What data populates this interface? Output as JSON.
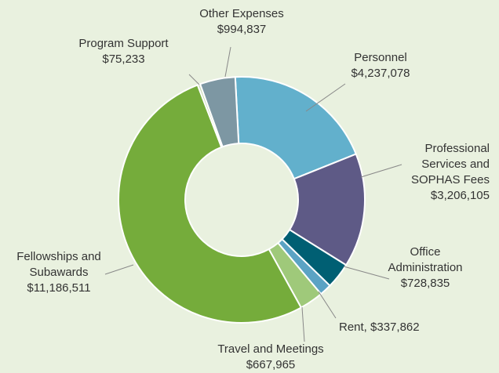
{
  "chart_data": {
    "type": "donut",
    "categories": [
      "Personnel",
      "Professional Services and SOPHAS Fees",
      "Office Administration",
      "Rent,",
      "Travel and Meetings",
      "Fellowships and Subawards",
      "Program Support",
      "Other Expenses"
    ],
    "values": [
      4237078,
      3206105,
      728835,
      337862,
      667965,
      11186511,
      75233,
      994837
    ],
    "value_labels": [
      "$4,237,078",
      "$3,206,105",
      "$728,835",
      "$337,862",
      "$667,965",
      "$11,186,511",
      "$75,233",
      "$994,837"
    ],
    "colors": [
      "#62b0cc",
      "#5e5a86",
      "#005f73",
      "#5ba3c4",
      "#9fc97a",
      "#75ac3b",
      "#c9d9b5",
      "#7d97a3"
    ]
  }
}
